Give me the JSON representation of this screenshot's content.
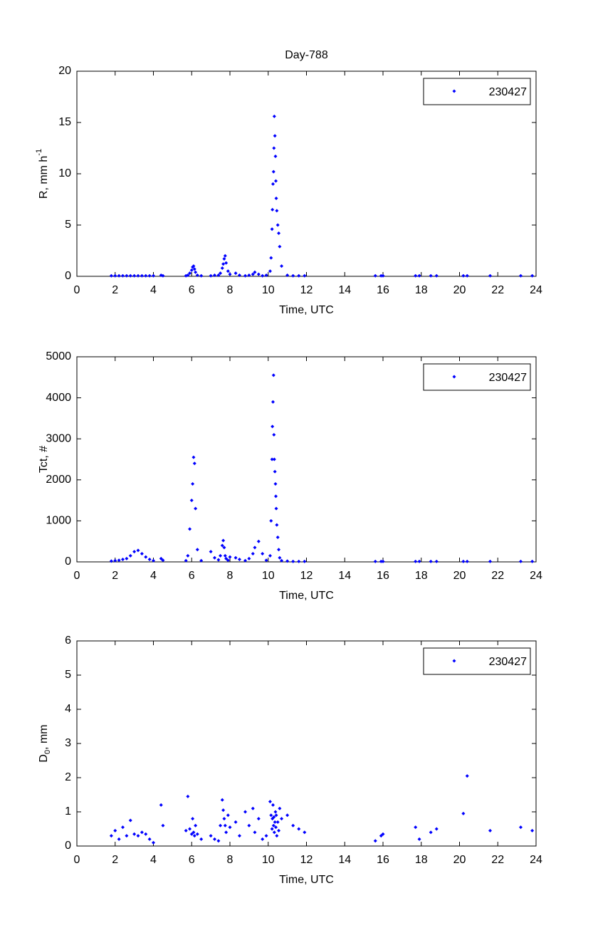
{
  "chart_data": [
    {
      "type": "scatter",
      "title": "Day-788",
      "xlabel": "Time, UTC",
      "ylabel": "R, mm h",
      "ylabel_sup": "-1",
      "xlim": [
        0,
        24
      ],
      "xticks": [
        0,
        2,
        4,
        6,
        8,
        10,
        12,
        14,
        16,
        18,
        20,
        22,
        24
      ],
      "ylim": [
        0,
        20
      ],
      "yticks": [
        0,
        5,
        10,
        15,
        20
      ],
      "legend": "upper right",
      "series": [
        {
          "name": "230427",
          "color": "#0000ff",
          "x": [
            1.8,
            2.0,
            2.2,
            2.4,
            2.6,
            2.8,
            3.0,
            3.2,
            3.4,
            3.6,
            3.8,
            4.0,
            4.4,
            4.5,
            5.7,
            5.8,
            5.9,
            6.0,
            6.05,
            6.1,
            6.15,
            6.2,
            6.3,
            6.5,
            7.0,
            7.2,
            7.4,
            7.5,
            7.6,
            7.65,
            7.7,
            7.75,
            7.8,
            7.9,
            8.0,
            8.3,
            8.5,
            8.8,
            9.0,
            9.2,
            9.3,
            9.5,
            9.7,
            9.9,
            10.1,
            10.15,
            10.2,
            10.22,
            10.25,
            10.28,
            10.3,
            10.32,
            10.35,
            10.38,
            10.4,
            10.42,
            10.45,
            10.5,
            10.55,
            10.6,
            10.7,
            11.0,
            11.3,
            11.6,
            11.9,
            15.6,
            15.9,
            16.0,
            17.7,
            17.9,
            18.5,
            18.8,
            20.2,
            20.4,
            21.6,
            23.2,
            23.8
          ],
          "values": [
            0.05,
            0.05,
            0.05,
            0.05,
            0.05,
            0.05,
            0.05,
            0.05,
            0.05,
            0.05,
            0.05,
            0.05,
            0.1,
            0.05,
            0.05,
            0.1,
            0.3,
            0.6,
            0.9,
            1.0,
            0.7,
            0.4,
            0.1,
            0.05,
            0.05,
            0.1,
            0.1,
            0.3,
            0.8,
            1.2,
            1.7,
            2.0,
            1.3,
            0.5,
            0.2,
            0.3,
            0.1,
            0.05,
            0.1,
            0.2,
            0.4,
            0.2,
            0.05,
            0.1,
            0.5,
            1.8,
            4.6,
            6.5,
            9.0,
            10.2,
            12.5,
            15.6,
            13.7,
            11.7,
            9.3,
            7.6,
            6.4,
            5.0,
            4.2,
            2.9,
            1.0,
            0.1,
            0.05,
            0.05,
            0.05,
            0.05,
            0.05,
            0.05,
            0.05,
            0.05,
            0.05,
            0.05,
            0.05,
            0.05,
            0.05,
            0.05,
            0.05
          ]
        }
      ]
    },
    {
      "type": "scatter",
      "xlabel": "Time, UTC",
      "ylabel": "Tct, #",
      "xlim": [
        0,
        24
      ],
      "xticks": [
        0,
        2,
        4,
        6,
        8,
        10,
        12,
        14,
        16,
        18,
        20,
        22,
        24
      ],
      "ylim": [
        0,
        5000
      ],
      "yticks": [
        0,
        1000,
        2000,
        3000,
        4000,
        5000
      ],
      "legend": "upper right",
      "series": [
        {
          "name": "230427",
          "color": "#0000ff",
          "x": [
            1.8,
            2.0,
            2.2,
            2.4,
            2.6,
            2.8,
            3.0,
            3.2,
            3.4,
            3.6,
            3.8,
            4.0,
            4.4,
            4.5,
            5.7,
            5.8,
            5.9,
            6.0,
            6.05,
            6.1,
            6.15,
            6.2,
            6.3,
            6.5,
            7.0,
            7.2,
            7.4,
            7.5,
            7.6,
            7.65,
            7.7,
            7.75,
            7.8,
            7.9,
            8.0,
            8.3,
            8.5,
            8.8,
            9.0,
            9.2,
            9.3,
            9.5,
            9.7,
            9.9,
            10.1,
            10.15,
            10.2,
            10.22,
            10.25,
            10.28,
            10.3,
            10.32,
            10.35,
            10.38,
            10.4,
            10.42,
            10.45,
            10.5,
            10.55,
            10.6,
            10.7,
            11.0,
            11.3,
            11.6,
            11.9,
            15.6,
            15.9,
            16.0,
            17.7,
            17.9,
            18.5,
            18.8,
            20.2,
            20.4,
            21.6,
            23.2,
            23.8
          ],
          "values": [
            20,
            30,
            40,
            60,
            80,
            150,
            250,
            280,
            200,
            120,
            60,
            30,
            80,
            40,
            30,
            150,
            800,
            1500,
            1900,
            2550,
            2400,
            1300,
            300,
            30,
            250,
            100,
            50,
            150,
            400,
            520,
            350,
            150,
            80,
            40,
            120,
            100,
            60,
            30,
            80,
            200,
            350,
            500,
            200,
            40,
            150,
            1000,
            2500,
            3300,
            3900,
            4550,
            3100,
            2500,
            2200,
            1900,
            1600,
            1300,
            900,
            600,
            300,
            100,
            30,
            20,
            10,
            10,
            10,
            10,
            10,
            10,
            10,
            10,
            10,
            10,
            10,
            10,
            10,
            10,
            10
          ]
        }
      ]
    },
    {
      "type": "scatter",
      "xlabel": "Time, UTC",
      "ylabel": "D",
      "ylabel_sub": "0",
      "ylabel_tail": ", mm",
      "xlim": [
        0,
        24
      ],
      "xticks": [
        0,
        2,
        4,
        6,
        8,
        10,
        12,
        14,
        16,
        18,
        20,
        22,
        24
      ],
      "ylim": [
        0,
        6
      ],
      "yticks": [
        0,
        1,
        2,
        3,
        4,
        5,
        6
      ],
      "legend": "upper right",
      "series": [
        {
          "name": "230427",
          "color": "#0000ff",
          "x": [
            1.8,
            2.0,
            2.2,
            2.4,
            2.6,
            2.8,
            3.0,
            3.2,
            3.4,
            3.6,
            3.8,
            4.0,
            4.4,
            4.5,
            5.7,
            5.8,
            5.9,
            6.0,
            6.05,
            6.1,
            6.15,
            6.2,
            6.3,
            6.5,
            7.0,
            7.2,
            7.4,
            7.5,
            7.6,
            7.65,
            7.7,
            7.75,
            7.8,
            7.9,
            8.0,
            8.3,
            8.5,
            8.8,
            9.0,
            9.2,
            9.3,
            9.5,
            9.7,
            9.9,
            10.1,
            10.15,
            10.2,
            10.22,
            10.25,
            10.28,
            10.3,
            10.32,
            10.35,
            10.38,
            10.4,
            10.42,
            10.45,
            10.5,
            10.55,
            10.6,
            10.7,
            11.0,
            11.3,
            11.6,
            11.9,
            15.6,
            15.9,
            16.0,
            17.7,
            17.9,
            18.5,
            18.8,
            20.2,
            20.4,
            21.6,
            23.2,
            23.8
          ],
          "values": [
            0.3,
            0.45,
            0.2,
            0.55,
            0.3,
            0.75,
            0.35,
            0.3,
            0.4,
            0.35,
            0.2,
            0.1,
            1.2,
            0.6,
            0.45,
            1.45,
            0.5,
            0.35,
            0.8,
            0.4,
            0.3,
            0.6,
            0.35,
            0.2,
            0.3,
            0.2,
            0.15,
            0.6,
            1.35,
            1.05,
            0.8,
            0.6,
            0.4,
            0.9,
            0.55,
            0.7,
            0.3,
            1.0,
            0.6,
            1.1,
            0.4,
            0.8,
            0.2,
            0.3,
            1.3,
            0.9,
            0.5,
            0.8,
            1.2,
            0.6,
            0.85,
            0.4,
            0.7,
            1.0,
            0.55,
            0.9,
            0.3,
            0.7,
            0.45,
            1.1,
            0.8,
            0.9,
            0.6,
            0.5,
            0.4,
            0.15,
            0.3,
            0.35,
            0.55,
            0.2,
            0.4,
            0.5,
            0.95,
            2.05,
            0.45,
            0.55,
            0.45
          ]
        }
      ]
    }
  ]
}
